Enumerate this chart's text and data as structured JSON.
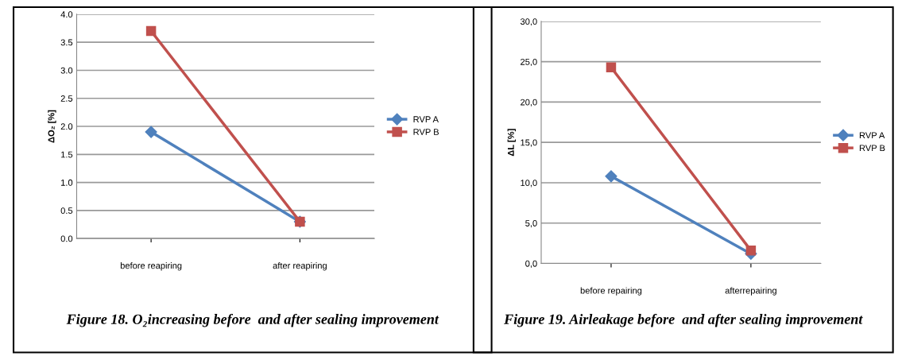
{
  "chart_data": [
    {
      "type": "line",
      "ylabel": "ΔO₂ [%]",
      "categories": [
        "before reapiring",
        "after reapiring"
      ],
      "series": [
        {
          "name": "RVP A",
          "color": "#4f81bd",
          "marker": "diamond",
          "values": [
            1.9,
            0.3
          ]
        },
        {
          "name": "RVP B",
          "color": "#c0504d",
          "marker": "square",
          "values": [
            3.7,
            0.3
          ]
        }
      ],
      "ylim": [
        0,
        4
      ],
      "yticks": [
        {
          "value": 0,
          "label": "0.0"
        },
        {
          "value": 0.5,
          "label": "0.5"
        },
        {
          "value": 1,
          "label": "1.0"
        },
        {
          "value": 1.5,
          "label": "1.5"
        },
        {
          "value": 2,
          "label": "2.0"
        },
        {
          "value": 2.5,
          "label": "2.5"
        },
        {
          "value": 3,
          "label": "3.0"
        },
        {
          "value": 3.5,
          "label": "3.5"
        },
        {
          "value": 4,
          "label": "4.0"
        }
      ],
      "grid": "y",
      "legend": "right",
      "annotations": [
        "Figure 18. O₂increasing before  and after sealing improvement"
      ]
    },
    {
      "type": "line",
      "ylabel": "ΔL [%]",
      "categories": [
        "before repairing",
        "afterrepairing"
      ],
      "series": [
        {
          "name": "RVP A",
          "color": "#4f81bd",
          "marker": "diamond",
          "values": [
            10.8,
            1.2
          ]
        },
        {
          "name": "RVP B",
          "color": "#c0504d",
          "marker": "square",
          "values": [
            24.3,
            1.6
          ]
        }
      ],
      "ylim": [
        0,
        30
      ],
      "yticks": [
        {
          "value": 0,
          "label": "0,0"
        },
        {
          "value": 5,
          "label": "5,0"
        },
        {
          "value": 10,
          "label": "10,0"
        },
        {
          "value": 15,
          "label": "15,0"
        },
        {
          "value": 20,
          "label": "20,0"
        },
        {
          "value": 25,
          "label": "25,0"
        },
        {
          "value": 30,
          "label": "30,0"
        }
      ],
      "grid": "y",
      "legend": "right",
      "annotations": [
        "Figure 19. Airleakage before  and after sealing improvement"
      ]
    }
  ]
}
